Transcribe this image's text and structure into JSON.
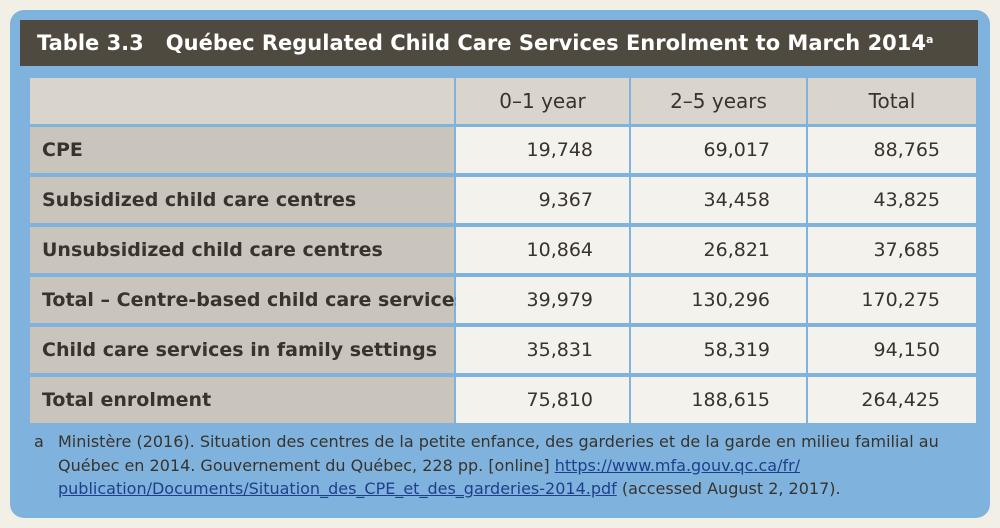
{
  "table": {
    "number": "Table 3.3",
    "title": "Québec Regulated Child Care Services Enrolment to March 2014",
    "title_note": "a",
    "columns": [
      "0–1 year",
      "2–5 years",
      "Total"
    ],
    "rows": [
      {
        "label": "CPE",
        "values": [
          "19,748",
          "69,017",
          "88,765"
        ]
      },
      {
        "label": "Subsidized child care centres",
        "values": [
          "9,367",
          "34,458",
          "43,825"
        ]
      },
      {
        "label": "Unsubsidized child care centres",
        "values": [
          "10,864",
          "26,821",
          "37,685"
        ]
      },
      {
        "label": "Total – Centre-based child care services",
        "values": [
          "39,979",
          "130,296",
          "170,275"
        ]
      },
      {
        "label": "Child care services in family settings",
        "values": [
          "35,831",
          "58,319",
          "94,150"
        ]
      },
      {
        "label": "Total enrolment",
        "values": [
          "75,810",
          "188,615",
          "264,425"
        ]
      }
    ]
  },
  "footnote": {
    "mark": "a",
    "text": "Ministère (2016). Situation des centres de la petite enfance, des garderies et de la garde en milieu familial au Québec en 2014. Gouvernement du Québec, 228 pp. [online] ",
    "link_line1": "https://www.mfa.gouv.qc.ca/fr/",
    "link_line2": "publication/Documents/Situation_des_CPE_et_des_garderies-2014.pdf",
    "suffix": " (accessed August 2, 2017)."
  },
  "colors": {
    "frame": "#7fb3de",
    "title_bar": "#4f4a40",
    "header_cell": "#d9d5cc",
    "row_label_cell": "#c9c5bc",
    "value_cell": "#f4f2ed",
    "link": "#1f3f8c"
  }
}
